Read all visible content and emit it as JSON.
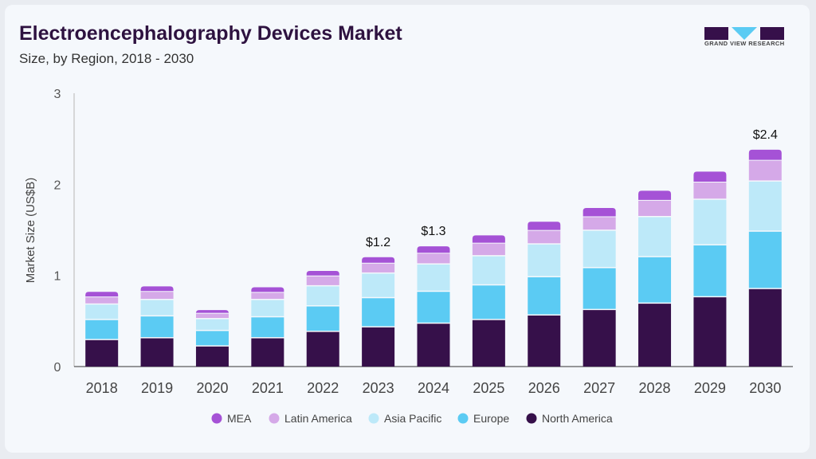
{
  "header": {
    "title": "Electroencephalography Devices Market",
    "subtitle": "Size, by Region, 2018 - 2030"
  },
  "logo": {
    "text": "GRAND VIEW RESEARCH"
  },
  "chart_data": {
    "type": "bar",
    "stacked": true,
    "title": "Electroencephalography Devices Market",
    "subtitle": "Size, by Region, 2018 - 2030",
    "xlabel": "",
    "ylabel": "Market Size (US$B)",
    "ylim": [
      0,
      3
    ],
    "yticks": [
      "0",
      "1",
      "2",
      "3"
    ],
    "grid": false,
    "legend_position": "bottom",
    "categories": [
      "2018",
      "2019",
      "2020",
      "2021",
      "2022",
      "2023",
      "2024",
      "2025",
      "2026",
      "2027",
      "2028",
      "2029",
      "2030"
    ],
    "series": [
      {
        "name": "North America",
        "color": "#36104a",
        "values": [
          0.29,
          0.31,
          0.22,
          0.31,
          0.38,
          0.43,
          0.47,
          0.51,
          0.56,
          0.62,
          0.69,
          0.76,
          0.85
        ]
      },
      {
        "name": "Europe",
        "color": "#5bcbf3",
        "values": [
          0.22,
          0.24,
          0.17,
          0.23,
          0.28,
          0.32,
          0.35,
          0.38,
          0.42,
          0.46,
          0.51,
          0.57,
          0.63
        ]
      },
      {
        "name": "Asia Pacific",
        "color": "#bde9f9",
        "values": [
          0.17,
          0.18,
          0.13,
          0.19,
          0.22,
          0.27,
          0.3,
          0.32,
          0.36,
          0.41,
          0.44,
          0.5,
          0.55
        ]
      },
      {
        "name": "Latin America",
        "color": "#d5a9e8",
        "values": [
          0.08,
          0.09,
          0.06,
          0.08,
          0.11,
          0.11,
          0.12,
          0.14,
          0.15,
          0.15,
          0.18,
          0.19,
          0.23
        ]
      },
      {
        "name": "MEA",
        "color": "#a552d6",
        "values": [
          0.06,
          0.06,
          0.04,
          0.06,
          0.06,
          0.07,
          0.08,
          0.09,
          0.1,
          0.1,
          0.11,
          0.12,
          0.12
        ]
      }
    ],
    "legend_order": [
      "MEA",
      "Latin America",
      "Asia Pacific",
      "Europe",
      "North America"
    ],
    "annotations": [
      {
        "category": "2023",
        "text": "$1.2"
      },
      {
        "category": "2024",
        "text": "$1.3"
      },
      {
        "category": "2030",
        "text": "$2.4"
      }
    ]
  }
}
